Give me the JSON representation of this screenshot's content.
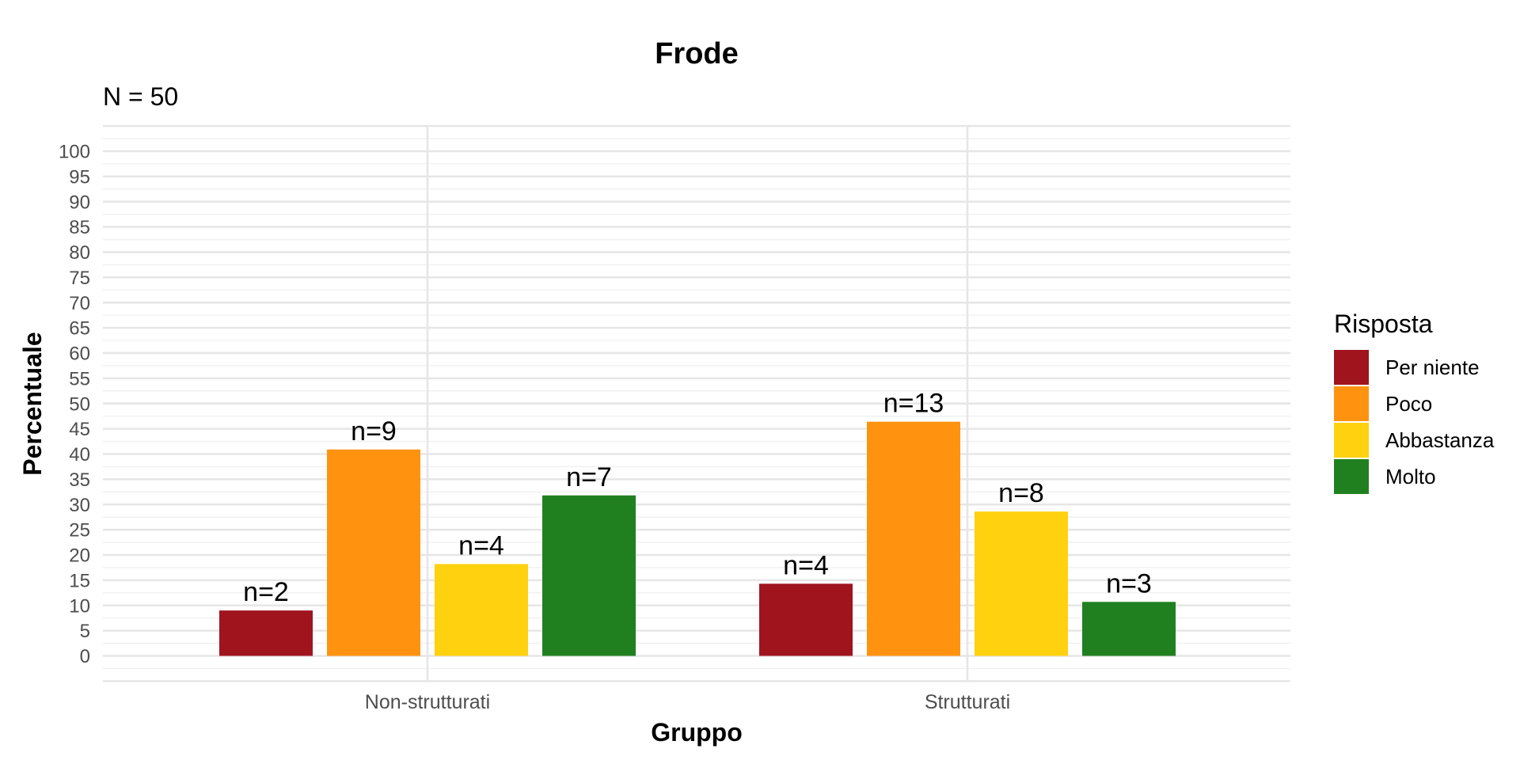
{
  "chart_data": {
    "type": "bar",
    "title": "Frode",
    "subtitle": "N = 50",
    "xlabel": "Gruppo",
    "ylabel": "Percentuale",
    "categories": [
      "Non-strutturati",
      "Strutturati"
    ],
    "ylim": [
      0,
      100
    ],
    "yticks": [
      0,
      5,
      10,
      15,
      20,
      25,
      30,
      35,
      40,
      45,
      50,
      55,
      60,
      65,
      70,
      75,
      80,
      85,
      90,
      95,
      100
    ],
    "grid": true,
    "legend": {
      "title": "Risposta",
      "position": "right"
    },
    "series": [
      {
        "name": "Per niente",
        "color": "#A0141E",
        "values": [
          9,
          14.3
        ],
        "labels": [
          "n=2",
          "n=4"
        ]
      },
      {
        "name": "Poco",
        "color": "#FF930F",
        "values": [
          40.9,
          46.4
        ],
        "labels": [
          "n=9",
          "n=13"
        ]
      },
      {
        "name": "Abbastanza",
        "color": "#FFD10F",
        "values": [
          18.2,
          28.6
        ],
        "labels": [
          "n=4",
          "n=8"
        ]
      },
      {
        "name": "Molto",
        "color": "#208020",
        "values": [
          31.8,
          10.7
        ],
        "labels": [
          "n=7",
          "n=3"
        ]
      }
    ]
  }
}
